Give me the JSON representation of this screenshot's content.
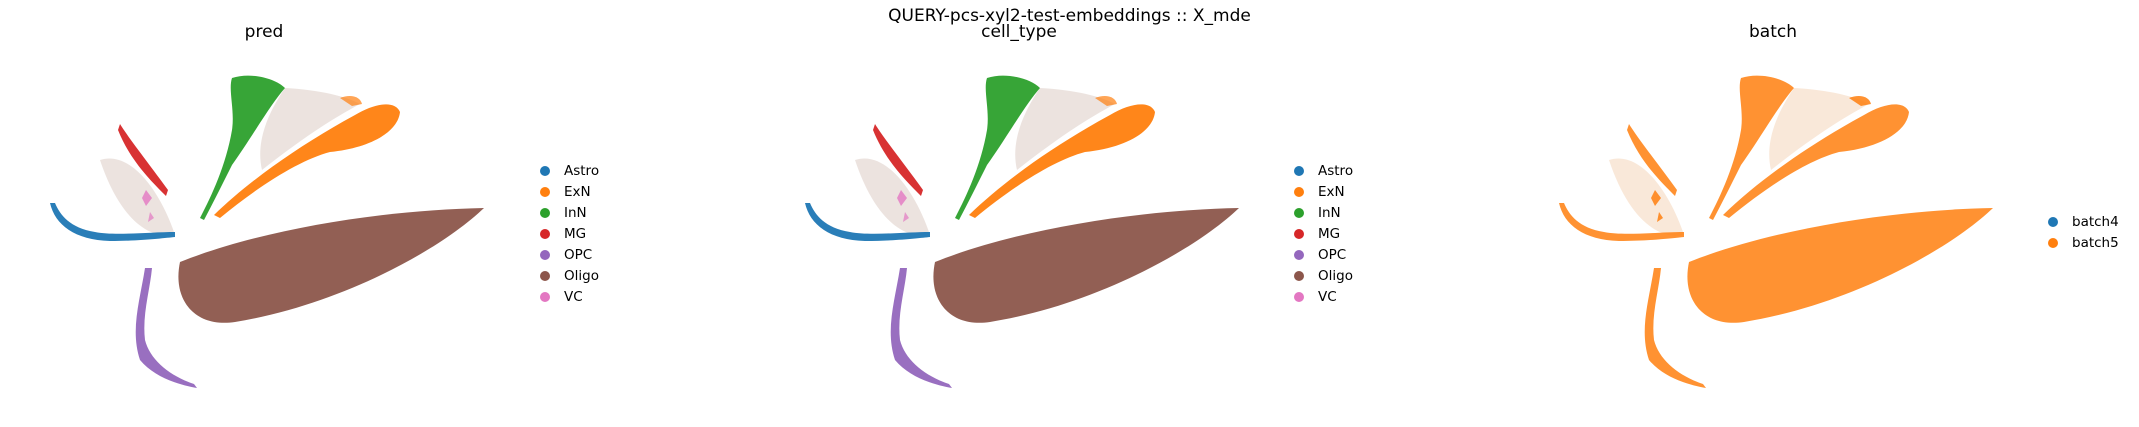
{
  "figure": {
    "suptitle": "QUERY-pcs-xyl2-test-embeddings :: X_mde"
  },
  "chart_data": [
    {
      "type": "scatter",
      "title": "pred",
      "xlabel": "",
      "ylabel": "",
      "axes_visible": false,
      "legend": "right",
      "categories": [
        "Astro",
        "ExN",
        "InN",
        "MG",
        "OPC",
        "Oligo",
        "VC"
      ],
      "colors": [
        "#1f77b4",
        "#ff7f0e",
        "#2ca02c",
        "#d62728",
        "#9467bd",
        "#8c564b",
        "#e377c2"
      ]
    },
    {
      "type": "scatter",
      "title": "cell_type",
      "xlabel": "",
      "ylabel": "",
      "axes_visible": false,
      "legend": "right",
      "categories": [
        "Astro",
        "ExN",
        "InN",
        "MG",
        "OPC",
        "Oligo",
        "VC"
      ],
      "colors": [
        "#1f77b4",
        "#ff7f0e",
        "#2ca02c",
        "#d62728",
        "#9467bd",
        "#8c564b",
        "#e377c2"
      ]
    },
    {
      "type": "scatter",
      "title": "batch",
      "xlabel": "",
      "ylabel": "",
      "axes_visible": false,
      "legend": "right",
      "categories": [
        "batch4",
        "batch5"
      ],
      "colors": [
        "#1f77b4",
        "#ff7f0e"
      ]
    }
  ]
}
